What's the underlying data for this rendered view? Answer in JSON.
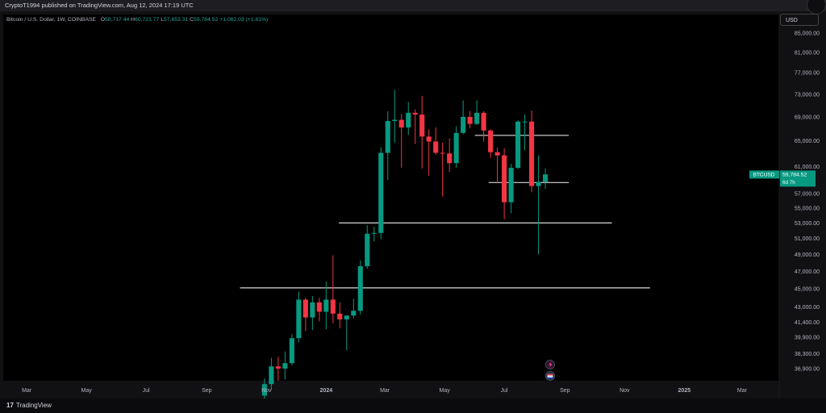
{
  "header": {
    "published": "CryptoT1994 published on TradingView.com, Aug 12, 2024 17:19 UTC"
  },
  "legend": {
    "symbol": "Bitcoin / U.S. Dollar, 1W, COINBASE",
    "o_label": "O",
    "o": "58,717.44",
    "h_label": "H",
    "h": "60,721.77",
    "l_label": "L",
    "l": "57,653.31",
    "c_label": "C",
    "c": "59,784.52",
    "change": "+1,062.03 (+1.81%)"
  },
  "currency_button": "USD",
  "price_tag": {
    "symbol": "BTCUSD",
    "price": "59,784.52",
    "countdown": "6d 7h"
  },
  "footer": {
    "brand": "TradingView",
    "logo_glyph": "17"
  },
  "colors": {
    "up": "#089981",
    "down": "#f23645",
    "text": "#b2b5be",
    "background": "#000000"
  },
  "chart_data": {
    "type": "candlestick",
    "y_scale": "log",
    "ylim": [
      35800,
      89000
    ],
    "y_ticks": [
      85000,
      81000,
      77000,
      73000,
      69000,
      65000,
      61000,
      57000,
      55000,
      53000,
      51000,
      49000,
      47000,
      45000,
      43000,
      41400,
      39900,
      38300,
      36900
    ],
    "y_tick_labels": [
      "85,000.00",
      "81,000.00",
      "77,000.00",
      "73,000.00",
      "69,000.00",
      "65,000.00",
      "61,000.00",
      "57,000.00",
      "55,000.00",
      "53,000.00",
      "51,000.00",
      "49,000.00",
      "47,000.00",
      "45,000.00",
      "43,000.00",
      "41,400.00",
      "39,900.00",
      "38,300.00",
      "36,900.00"
    ],
    "x_range": [
      "2023-02-05",
      "2025-04-08"
    ],
    "x_ticks": [
      {
        "label": "Mar",
        "date": "2023-03-01"
      },
      {
        "label": "May",
        "date": "2023-05-01"
      },
      {
        "label": "Jul",
        "date": "2023-07-01"
      },
      {
        "label": "Sep",
        "date": "2023-09-01"
      },
      {
        "label": "Nov",
        "date": "2023-11-01"
      },
      {
        "label": "2024",
        "date": "2024-01-01",
        "bold": true
      },
      {
        "label": "Mar",
        "date": "2024-03-01"
      },
      {
        "label": "May",
        "date": "2024-05-01"
      },
      {
        "label": "Jul",
        "date": "2024-07-01"
      },
      {
        "label": "Sep",
        "date": "2024-09-01"
      },
      {
        "label": "Nov",
        "date": "2024-11-01"
      },
      {
        "label": "2025",
        "date": "2025-01-01",
        "bold": true
      },
      {
        "label": "Mar",
        "date": "2025-03-01"
      }
    ],
    "candles": [
      {
        "date": "2023-10-30",
        "o": 34500,
        "h": 36000,
        "l": 34000,
        "c": 35500
      },
      {
        "date": "2023-11-06",
        "o": 35500,
        "h": 37900,
        "l": 35000,
        "c": 37100
      },
      {
        "date": "2023-11-13",
        "o": 37100,
        "h": 38000,
        "l": 35800,
        "c": 36900
      },
      {
        "date": "2023-11-20",
        "o": 36900,
        "h": 38500,
        "l": 35900,
        "c": 37400
      },
      {
        "date": "2023-11-27",
        "o": 37400,
        "h": 40200,
        "l": 37200,
        "c": 39800
      },
      {
        "date": "2023-12-04",
        "o": 39800,
        "h": 44700,
        "l": 39400,
        "c": 43800
      },
      {
        "date": "2023-12-11",
        "o": 43800,
        "h": 44000,
        "l": 40500,
        "c": 41900
      },
      {
        "date": "2023-12-18",
        "o": 41900,
        "h": 44200,
        "l": 40600,
        "c": 43500
      },
      {
        "date": "2023-12-25",
        "o": 43500,
        "h": 44000,
        "l": 41500,
        "c": 42500
      },
      {
        "date": "2024-01-01",
        "o": 42500,
        "h": 45800,
        "l": 40700,
        "c": 43800
      },
      {
        "date": "2024-01-08",
        "o": 43800,
        "h": 48900,
        "l": 41300,
        "c": 42300
      },
      {
        "date": "2024-01-15",
        "o": 42300,
        "h": 43500,
        "l": 40800,
        "c": 41700
      },
      {
        "date": "2024-01-22",
        "o": 41700,
        "h": 42000,
        "l": 38600,
        "c": 42100
      },
      {
        "date": "2024-01-29",
        "o": 42100,
        "h": 43900,
        "l": 41800,
        "c": 42600
      },
      {
        "date": "2024-02-05",
        "o": 42600,
        "h": 48300,
        "l": 42200,
        "c": 47600
      },
      {
        "date": "2024-02-12",
        "o": 47600,
        "h": 52700,
        "l": 47300,
        "c": 51600
      },
      {
        "date": "2024-02-19",
        "o": 51600,
        "h": 52500,
        "l": 50600,
        "c": 51700
      },
      {
        "date": "2024-02-26",
        "o": 51700,
        "h": 64000,
        "l": 50900,
        "c": 63100
      },
      {
        "date": "2024-03-04",
        "o": 63100,
        "h": 70000,
        "l": 59000,
        "c": 68300
      },
      {
        "date": "2024-03-11",
        "o": 68300,
        "h": 73800,
        "l": 64700,
        "c": 68500
      },
      {
        "date": "2024-03-18",
        "o": 68500,
        "h": 69500,
        "l": 60800,
        "c": 67200
      },
      {
        "date": "2024-03-25",
        "o": 67200,
        "h": 71600,
        "l": 66000,
        "c": 69700
      },
      {
        "date": "2024-04-01",
        "o": 69700,
        "h": 70300,
        "l": 64500,
        "c": 69400
      },
      {
        "date": "2024-04-08",
        "o": 69400,
        "h": 72700,
        "l": 60700,
        "c": 65700
      },
      {
        "date": "2024-04-15",
        "o": 65700,
        "h": 66900,
        "l": 59600,
        "c": 64900
      },
      {
        "date": "2024-04-22",
        "o": 64900,
        "h": 67200,
        "l": 62800,
        "c": 63100
      },
      {
        "date": "2024-04-29",
        "o": 63100,
        "h": 64700,
        "l": 56600,
        "c": 63000
      },
      {
        "date": "2024-05-06",
        "o": 63000,
        "h": 65400,
        "l": 60200,
        "c": 61500
      },
      {
        "date": "2024-05-13",
        "o": 61500,
        "h": 67400,
        "l": 60800,
        "c": 66300
      },
      {
        "date": "2024-05-20",
        "o": 66300,
        "h": 71900,
        "l": 66100,
        "c": 69000
      },
      {
        "date": "2024-05-27",
        "o": 69000,
        "h": 70000,
        "l": 67100,
        "c": 67800
      },
      {
        "date": "2024-06-03",
        "o": 67800,
        "h": 71900,
        "l": 67600,
        "c": 69700
      },
      {
        "date": "2024-06-10",
        "o": 69700,
        "h": 70000,
        "l": 64900,
        "c": 66700
      },
      {
        "date": "2024-06-17",
        "o": 66700,
        "h": 66900,
        "l": 62300,
        "c": 63200
      },
      {
        "date": "2024-06-24",
        "o": 63200,
        "h": 63900,
        "l": 58500,
        "c": 62700
      },
      {
        "date": "2024-07-01",
        "o": 62700,
        "h": 63800,
        "l": 53500,
        "c": 55800
      },
      {
        "date": "2024-07-08",
        "o": 55800,
        "h": 61400,
        "l": 54300,
        "c": 60800
      },
      {
        "date": "2024-07-15",
        "o": 60800,
        "h": 68400,
        "l": 60600,
        "c": 68200
      },
      {
        "date": "2024-07-22",
        "o": 68200,
        "h": 69400,
        "l": 63500,
        "c": 68200
      },
      {
        "date": "2024-07-29",
        "o": 68200,
        "h": 70100,
        "l": 57200,
        "c": 58100
      },
      {
        "date": "2024-08-05",
        "o": 58100,
        "h": 62700,
        "l": 49000,
        "c": 58700
      },
      {
        "date": "2024-08-12",
        "o": 58700,
        "h": 60700,
        "l": 57700,
        "c": 59800
      }
    ],
    "horizontal_lines": [
      {
        "price": 65900,
        "from": "2024-06-01",
        "to": "2024-09-05"
      },
      {
        "price": 58600,
        "from": "2024-06-15",
        "to": "2024-09-05"
      },
      {
        "price": 53000,
        "from": "2024-01-14",
        "to": "2024-10-19"
      },
      {
        "price": 45100,
        "from": "2023-10-05",
        "to": "2024-11-27"
      }
    ],
    "current_price": 59784.52
  }
}
